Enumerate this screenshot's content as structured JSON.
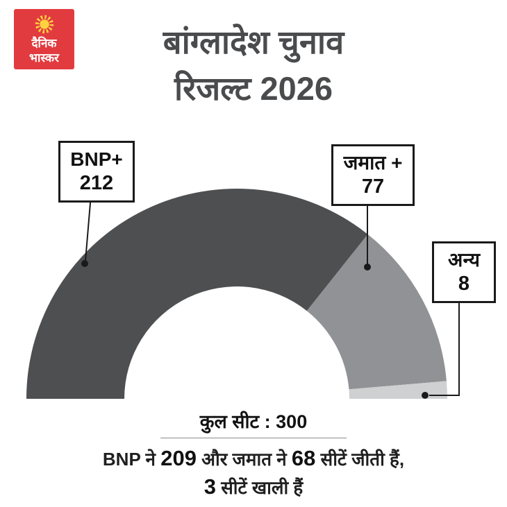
{
  "brand": {
    "name_line1": "दैनिक",
    "name_line2": "भास्कर",
    "bg_color": "#e23b3f",
    "sun_color": "#ffd23f"
  },
  "header": {
    "title_line1": "बांग्लादेश चुनाव",
    "title_line2": "रिजल्ट 2026"
  },
  "chart_data": {
    "type": "pie",
    "variant": "half-donut",
    "title": "बांग्लादेश चुनाव रिजल्ट 2026",
    "unit": "seats",
    "total": 300,
    "total_label": "कुल सीट : 300",
    "legend_position": "callout-labels",
    "segments": [
      {
        "label": "BNP+",
        "value": 212,
        "color": "#4e4f51"
      },
      {
        "label": "जमात +",
        "value": 77,
        "color": "#909295"
      },
      {
        "label": "अन्य",
        "value": 8,
        "color": "#cfd0d2"
      }
    ]
  },
  "callouts": {
    "bnp": {
      "name": "BNP+",
      "value": "212"
    },
    "jamaat": {
      "name": "जमात +",
      "value": "77"
    },
    "others": {
      "name": "अन्य",
      "value": "8"
    }
  },
  "summary": {
    "line1": [
      {
        "text": "BNP ने ",
        "bold": false
      },
      {
        "text": "209",
        "bold": true
      },
      {
        "text": " और जमात ने ",
        "bold": false
      },
      {
        "text": "68",
        "bold": true
      },
      {
        "text": " सीटें जीती हैं,",
        "bold": false
      }
    ],
    "line2": [
      {
        "text": "3",
        "bold": true
      },
      {
        "text": " सीटें खाली हैं",
        "bold": false
      }
    ]
  }
}
